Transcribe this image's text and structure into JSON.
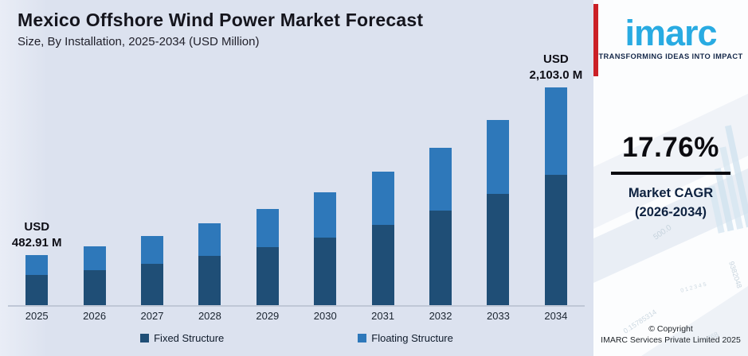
{
  "header": {
    "title": "Mexico Offshore Wind Power Market Forecast",
    "subtitle": "Size, By Installation, 2025-2034 (USD Million)"
  },
  "chart_data": {
    "type": "bar",
    "stacked": true,
    "title": "Mexico Offshore Wind Power Market Forecast",
    "subtitle": "Size, By Installation, 2025-2034 (USD Million)",
    "unit": "USD Million",
    "categories": [
      "2025",
      "2026",
      "2027",
      "2028",
      "2029",
      "2030",
      "2031",
      "2032",
      "2033",
      "2034"
    ],
    "series": [
      {
        "name": "Fixed Structure",
        "color": "#1f4e76",
        "values": [
          290,
          341,
          402,
          473,
          557,
          656,
          773,
          910,
          1072,
          1262
        ]
      },
      {
        "name": "Floating Structure",
        "color": "#2e78ba",
        "values": [
          193,
          228,
          268,
          316,
          372,
          438,
          515,
          607,
          714,
          841
        ]
      }
    ],
    "totals": [
      482.91,
      568.7,
      669.7,
      788.6,
      928.7,
      1093.6,
      1287.8,
      1516.5,
      1785.9,
      2103.0
    ],
    "annotations": [
      {
        "index": 0,
        "lines": [
          "USD",
          "482.91 M"
        ]
      },
      {
        "index": 9,
        "lines": [
          "USD",
          "2,103.0 M"
        ]
      }
    ],
    "ylim": [
      0,
      2200
    ],
    "grid": false,
    "legend_position": "bottom"
  },
  "sidebar": {
    "logo_text": "imarc",
    "tagline": "TRANSFORMING IDEAS INTO IMPACT",
    "cagr_value": "17.76%",
    "cagr_label_line1": "Market CAGR",
    "cagr_label_line2": "(2026-2034)",
    "copyright_line1": "© Copyright",
    "copyright_line2": "IMARC Services Private Limited 2025",
    "brand_blue": "#29abe2",
    "accent_red": "#cb2026",
    "watermarks": [
      "500.0",
      "9382048",
      "0.15785314",
      "2768",
      "0 1 2 3 4 5"
    ]
  },
  "colors": {
    "chart_background": "#dce2ef",
    "fixed_structure": "#1f4e76",
    "floating_structure": "#2e78ba",
    "axis_line": "#bfc7d6",
    "title_text": "#15151d"
  }
}
